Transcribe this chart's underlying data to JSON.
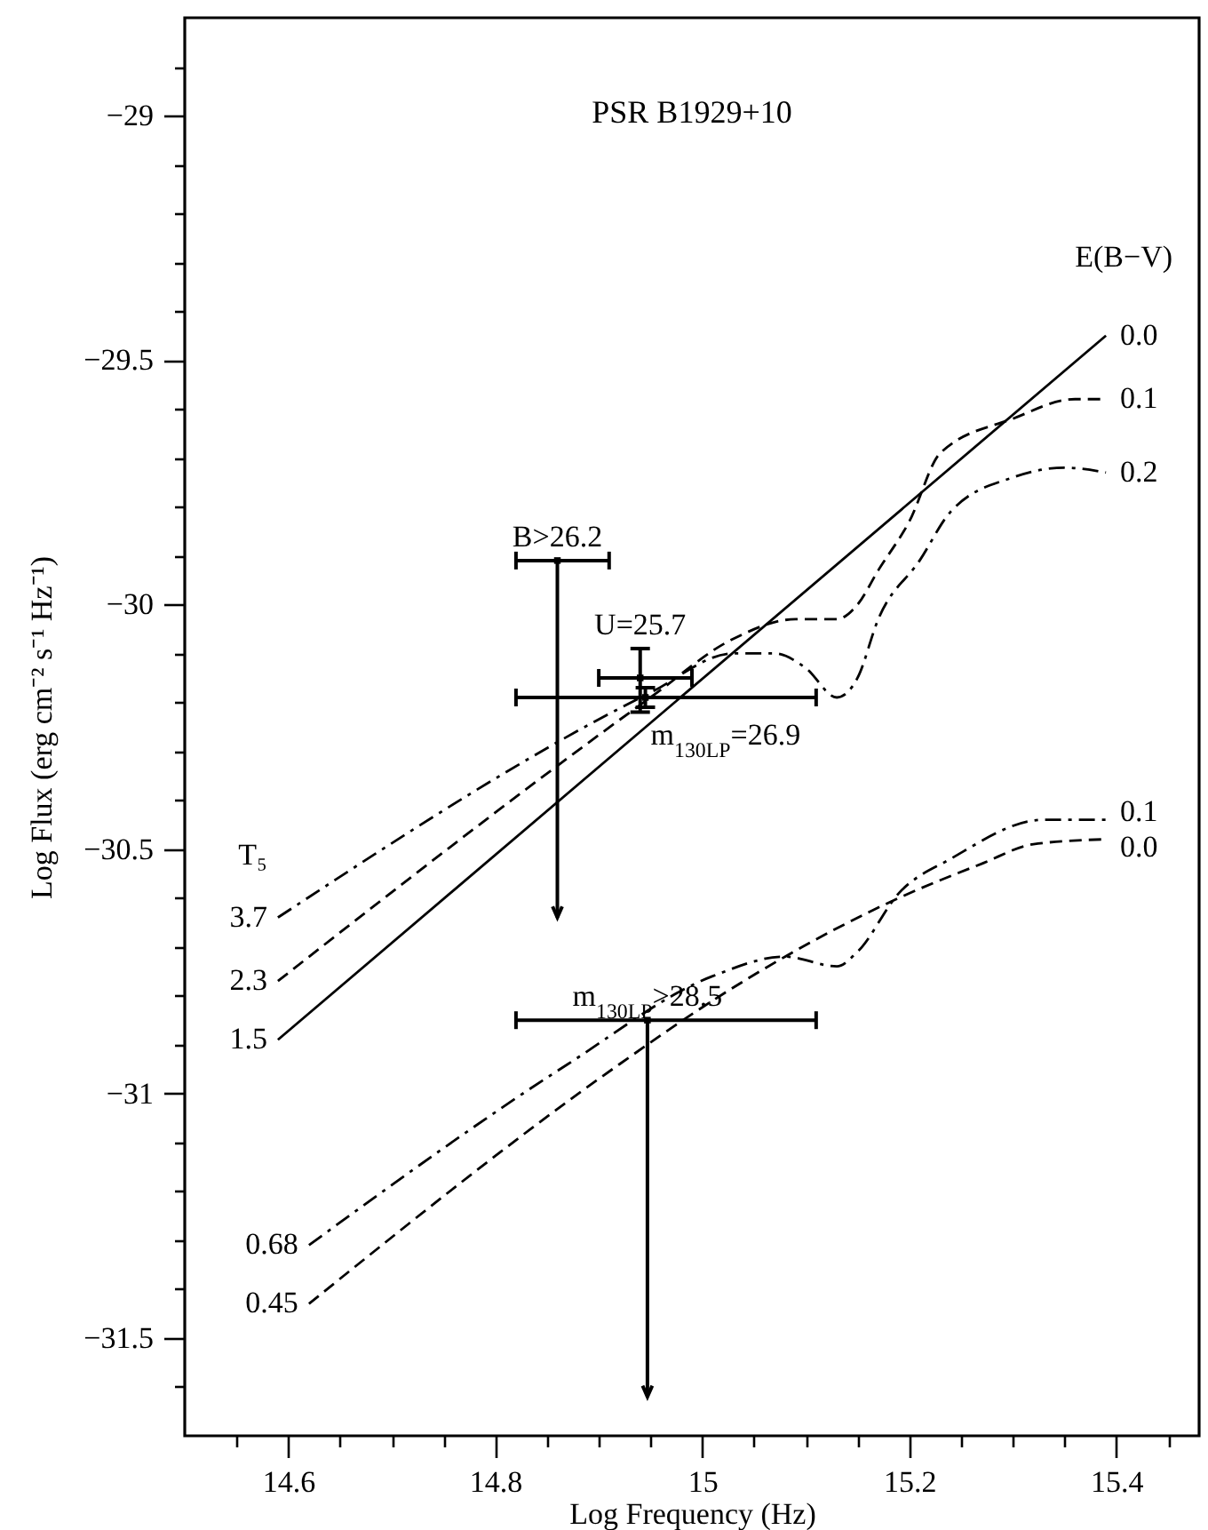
{
  "chart_data": {
    "type": "line",
    "title": "PSR B1929+10",
    "xlabel": "Log Frequency (Hz)",
    "ylabel": "Log Flux (erg cm⁻² s⁻¹ Hz⁻¹)",
    "xlim": [
      14.5,
      15.48
    ],
    "ylim": [
      -31.7,
      -28.8
    ],
    "xticks": [
      {
        "value": 14.55,
        "label": null
      },
      14.6,
      {
        "value": 14.65,
        "label": null
      },
      {
        "value": 14.7,
        "label": null
      },
      {
        "value": 14.75,
        "label": null
      },
      14.8,
      {
        "value": 14.85,
        "label": null
      },
      {
        "value": 14.9,
        "label": null
      },
      {
        "value": 14.95,
        "label": null
      },
      15,
      {
        "value": 15.05,
        "label": null
      },
      {
        "value": 15.1,
        "label": null
      },
      {
        "value": 15.15,
        "label": null
      },
      15.2,
      {
        "value": 15.25,
        "label": null
      },
      {
        "value": 15.3,
        "label": null
      },
      {
        "value": 15.35,
        "label": null
      },
      15.4,
      {
        "value": 15.45,
        "label": null
      }
    ],
    "yticks": [
      {
        "value": -28.9,
        "label": null
      },
      -29,
      {
        "value": -29.1,
        "label": null
      },
      {
        "value": -29.2,
        "label": null
      },
      {
        "value": -29.3,
        "label": null
      },
      {
        "value": -29.4,
        "label": null
      },
      -29.5,
      {
        "value": -29.6,
        "label": null
      },
      {
        "value": -29.7,
        "label": null
      },
      {
        "value": -29.8,
        "label": null
      },
      {
        "value": -29.9,
        "label": null
      },
      -30,
      {
        "value": -30.1,
        "label": null
      },
      {
        "value": -30.2,
        "label": null
      },
      {
        "value": -30.3,
        "label": null
      },
      {
        "value": -30.4,
        "label": null
      },
      -30.5,
      {
        "value": -30.6,
        "label": null
      },
      {
        "value": -30.7,
        "label": null
      },
      {
        "value": -30.8,
        "label": null
      },
      {
        "value": -30.9,
        "label": null
      },
      -31,
      {
        "value": -31.1,
        "label": null
      },
      {
        "value": -31.2,
        "label": null
      },
      {
        "value": -31.3,
        "label": null
      },
      {
        "value": -31.4,
        "label": null
      },
      -31.5,
      {
        "value": -31.6,
        "label": null
      }
    ],
    "series": [
      {
        "name": "0.0",
        "color": "#000000",
        "line_style": "solid",
        "x": [
          14.59,
          15.39
        ],
        "values": [
          -30.89,
          -29.45
        ]
      },
      {
        "name": "0.1",
        "color": "#000000",
        "line_style": "dashed",
        "x": [
          14.59,
          14.95,
          15.03,
          15.09,
          15.13,
          15.15,
          15.17,
          15.2,
          15.23,
          15.3,
          15.36,
          15.39
        ],
        "values": [
          -30.77,
          -30.19,
          -30.07,
          -30.03,
          -30.03,
          -30.0,
          -29.93,
          -29.83,
          -29.69,
          -29.62,
          -29.58,
          -29.58
        ]
      },
      {
        "name": "0.2",
        "color": "#000000",
        "line_style": "dashdot",
        "x": [
          14.59,
          14.95,
          15.03,
          15.07,
          15.1,
          15.13,
          15.15,
          15.17,
          15.21,
          15.24,
          15.3,
          15.35,
          15.39
        ],
        "values": [
          -30.64,
          -30.18,
          -30.1,
          -30.1,
          -30.13,
          -30.19,
          -30.15,
          -30.03,
          -29.91,
          -29.81,
          -29.74,
          -29.72,
          -29.73
        ]
      },
      {
        "name": "0.1",
        "color": "#000000",
        "line_style": "dashdot",
        "x": [
          14.62,
          14.87,
          15.01,
          15.08,
          15.13,
          15.15,
          15.19,
          15.24,
          15.33,
          15.39
        ],
        "values": [
          -31.31,
          -30.94,
          -30.76,
          -30.72,
          -30.74,
          -30.71,
          -30.59,
          -30.52,
          -30.44,
          -30.44
        ]
      },
      {
        "name": "0.0",
        "color": "#000000",
        "line_style": "dashed",
        "x": [
          14.62,
          14.92,
          15.01,
          15.08,
          15.19,
          15.27,
          15.32,
          15.39
        ],
        "values": [
          -31.43,
          -30.94,
          -30.81,
          -30.72,
          -30.6,
          -30.53,
          -30.49,
          -30.48
        ]
      },
      {
        "type": "scatter",
        "color": "#000000",
        "marker": "square",
        "x": [
          14.86,
          14.94,
          14.945,
          14.947
        ],
        "values": [
          -29.91,
          -30.15,
          -30.19,
          -30.85
        ],
        "errors": [
          [
            -30.64,
            -29.91
          ],
          [
            -30.22,
            -30.09
          ],
          [
            -30.21,
            -30.17
          ],
          [
            -31.62,
            -30.85
          ]
        ],
        "xerrors": [
          [
            14.82,
            14.91
          ],
          [
            14.9,
            14.99
          ],
          [
            14.82,
            15.11
          ],
          [
            14.82,
            15.11
          ]
        ]
      }
    ],
    "annotations": [
      "E(B−V)",
      "T₅",
      {
        "text": "3.7",
        "x": 14.59,
        "y": -30.64
      },
      {
        "text": "2.3",
        "x": 14.59,
        "y": -30.77
      },
      {
        "text": "1.5",
        "x": 14.59,
        "y": -30.89
      },
      {
        "text": "0.68",
        "x": 14.62,
        "y": -31.31
      },
      {
        "text": "0.45",
        "x": 14.62,
        "y": -31.43
      },
      {
        "text": "B>26.2",
        "x": 14.86,
        "y": -29.91
      },
      {
        "text": "U=25.7",
        "x": 14.94,
        "y": -30.15
      },
      {
        "text": "m$_{130LP}$=26.9",
        "x": 14.945,
        "y": -30.19
      },
      {
        "text": "m$_{130LP}$>28.5",
        "x": 14.947,
        "y": -30.85
      }
    ]
  }
}
